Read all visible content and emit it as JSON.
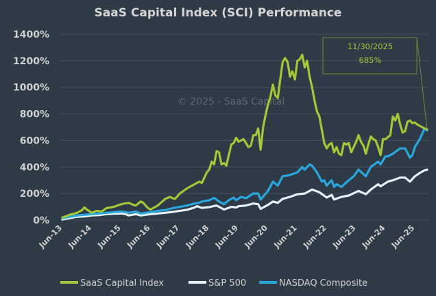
{
  "chart_data": {
    "type": "line",
    "title": "SaaS Capital Index (SCI) Performance",
    "watermark": "© 2025 - SaaS Capital",
    "xlabel": "",
    "ylabel": "",
    "ylim": [
      0,
      1400
    ],
    "y_ticks": [
      0,
      200,
      400,
      600,
      800,
      1000,
      1200,
      1400
    ],
    "y_tick_labels": [
      "0%",
      "200%",
      "400%",
      "600%",
      "800%",
      "1000%",
      "1200%",
      "1400%"
    ],
    "x_range": [
      "2013-06",
      "2025-11"
    ],
    "x_ticks": [
      "2013-06",
      "2014-06",
      "2015-06",
      "2016-06",
      "2017-06",
      "2018-06",
      "2019-06",
      "2020-06",
      "2021-06",
      "2022-06",
      "2023-06",
      "2024-06",
      "2025-06"
    ],
    "x_tick_labels": [
      "Jun-13",
      "Jun-14",
      "Jun-15",
      "Jun-16",
      "Jun-17",
      "Jun-18",
      "Jun-19",
      "Jun-20",
      "Jun-21",
      "Jun-22",
      "Jun-23",
      "Jun-24",
      "Jun-25"
    ],
    "grid": true,
    "legend_position": "bottom",
    "annotation": {
      "date": "11/30/2025",
      "value": "685%"
    },
    "series": [
      {
        "name": "SaaS Capital Index",
        "color": "#a4c639",
        "points": [
          [
            "2013-06",
            20
          ],
          [
            "2013-09",
            40
          ],
          [
            "2013-12",
            55
          ],
          [
            "2014-02",
            75
          ],
          [
            "2014-03",
            95
          ],
          [
            "2014-04",
            80
          ],
          [
            "2014-06",
            55
          ],
          [
            "2014-08",
            70
          ],
          [
            "2014-10",
            65
          ],
          [
            "2014-12",
            90
          ],
          [
            "2015-03",
            100
          ],
          [
            "2015-06",
            120
          ],
          [
            "2015-09",
            130
          ],
          [
            "2015-11",
            115
          ],
          [
            "2015-12",
            110
          ],
          [
            "2016-02",
            140
          ],
          [
            "2016-03",
            130
          ],
          [
            "2016-05",
            90
          ],
          [
            "2016-06",
            80
          ],
          [
            "2016-09",
            110
          ],
          [
            "2016-12",
            160
          ],
          [
            "2017-02",
            175
          ],
          [
            "2017-03",
            165
          ],
          [
            "2017-04",
            160
          ],
          [
            "2017-06",
            200
          ],
          [
            "2017-09",
            240
          ],
          [
            "2017-12",
            270
          ],
          [
            "2018-02",
            290
          ],
          [
            "2018-03",
            280
          ],
          [
            "2018-05",
            360
          ],
          [
            "2018-06",
            380
          ],
          [
            "2018-07",
            440
          ],
          [
            "2018-08",
            420
          ],
          [
            "2018-09",
            520
          ],
          [
            "2018-10",
            510
          ],
          [
            "2018-11",
            420
          ],
          [
            "2018-12",
            430
          ],
          [
            "2019-01",
            410
          ],
          [
            "2019-03",
            570
          ],
          [
            "2019-04",
            580
          ],
          [
            "2019-05",
            620
          ],
          [
            "2019-06",
            590
          ],
          [
            "2019-08",
            610
          ],
          [
            "2019-10",
            550
          ],
          [
            "2019-11",
            560
          ],
          [
            "2019-12",
            640
          ],
          [
            "2020-01",
            640
          ],
          [
            "2020-02",
            690
          ],
          [
            "2020-03",
            530
          ],
          [
            "2020-04",
            700
          ],
          [
            "2020-05",
            790
          ],
          [
            "2020-06",
            870
          ],
          [
            "2020-07",
            930
          ],
          [
            "2020-08",
            1020
          ],
          [
            "2020-09",
            940
          ],
          [
            "2020-10",
            920
          ],
          [
            "2020-11",
            1060
          ],
          [
            "2020-12",
            1190
          ],
          [
            "2021-01",
            1220
          ],
          [
            "2021-02",
            1190
          ],
          [
            "2021-03",
            1080
          ],
          [
            "2021-04",
            1120
          ],
          [
            "2021-05",
            1060
          ],
          [
            "2021-06",
            1200
          ],
          [
            "2021-07",
            1210
          ],
          [
            "2021-08",
            1245
          ],
          [
            "2021-09",
            1150
          ],
          [
            "2021-10",
            1200
          ],
          [
            "2021-11",
            1080
          ],
          [
            "2021-12",
            1000
          ],
          [
            "2022-01",
            900
          ],
          [
            "2022-02",
            820
          ],
          [
            "2022-03",
            780
          ],
          [
            "2022-04",
            680
          ],
          [
            "2022-05",
            580
          ],
          [
            "2022-06",
            540
          ],
          [
            "2022-07",
            570
          ],
          [
            "2022-08",
            580
          ],
          [
            "2022-09",
            510
          ],
          [
            "2022-10",
            550
          ],
          [
            "2022-11",
            500
          ],
          [
            "2022-12",
            490
          ],
          [
            "2023-01",
            580
          ],
          [
            "2023-02",
            570
          ],
          [
            "2023-03",
            580
          ],
          [
            "2023-04",
            510
          ],
          [
            "2023-06",
            590
          ],
          [
            "2023-07",
            640
          ],
          [
            "2023-08",
            590
          ],
          [
            "2023-09",
            560
          ],
          [
            "2023-10",
            500
          ],
          [
            "2023-11",
            570
          ],
          [
            "2023-12",
            630
          ],
          [
            "2024-01",
            610
          ],
          [
            "2024-02",
            600
          ],
          [
            "2024-03",
            550
          ],
          [
            "2024-04",
            490
          ],
          [
            "2024-05",
            610
          ],
          [
            "2024-06",
            610
          ],
          [
            "2024-08",
            640
          ],
          [
            "2024-09",
            780
          ],
          [
            "2024-10",
            750
          ],
          [
            "2024-11",
            800
          ],
          [
            "2024-12",
            720
          ],
          [
            "2025-01",
            660
          ],
          [
            "2025-02",
            670
          ],
          [
            "2025-03",
            740
          ],
          [
            "2025-04",
            750
          ],
          [
            "2025-05",
            730
          ],
          [
            "2025-06",
            735
          ],
          [
            "2025-07",
            720
          ],
          [
            "2025-08",
            710
          ],
          [
            "2025-09",
            700
          ],
          [
            "2025-10",
            690
          ],
          [
            "2025-11",
            685
          ]
        ]
      },
      {
        "name": "S&P 500",
        "color": "#e4f3fb",
        "points": [
          [
            "2013-06",
            5
          ],
          [
            "2013-09",
            15
          ],
          [
            "2013-12",
            25
          ],
          [
            "2014-03",
            28
          ],
          [
            "2014-06",
            35
          ],
          [
            "2014-09",
            38
          ],
          [
            "2014-12",
            45
          ],
          [
            "2015-03",
            48
          ],
          [
            "2015-06",
            50
          ],
          [
            "2015-08",
            45
          ],
          [
            "2015-09",
            35
          ],
          [
            "2015-12",
            45
          ],
          [
            "2016-02",
            35
          ],
          [
            "2016-06",
            45
          ],
          [
            "2016-09",
            50
          ],
          [
            "2016-12",
            55
          ],
          [
            "2017-03",
            62
          ],
          [
            "2017-06",
            70
          ],
          [
            "2017-09",
            78
          ],
          [
            "2017-12",
            95
          ],
          [
            "2018-01",
            105
          ],
          [
            "2018-03",
            92
          ],
          [
            "2018-06",
            98
          ],
          [
            "2018-09",
            110
          ],
          [
            "2018-12",
            80
          ],
          [
            "2019-03",
            100
          ],
          [
            "2019-05",
            95
          ],
          [
            "2019-06",
            105
          ],
          [
            "2019-09",
            110
          ],
          [
            "2019-12",
            125
          ],
          [
            "2020-02",
            120
          ],
          [
            "2020-03",
            85
          ],
          [
            "2020-06",
            115
          ],
          [
            "2020-08",
            140
          ],
          [
            "2020-10",
            130
          ],
          [
            "2020-12",
            160
          ],
          [
            "2021-03",
            175
          ],
          [
            "2021-06",
            195
          ],
          [
            "2021-09",
            200
          ],
          [
            "2021-12",
            230
          ],
          [
            "2022-03",
            210
          ],
          [
            "2022-06",
            170
          ],
          [
            "2022-08",
            190
          ],
          [
            "2022-09",
            155
          ],
          [
            "2022-12",
            175
          ],
          [
            "2023-03",
            185
          ],
          [
            "2023-07",
            220
          ],
          [
            "2023-10",
            195
          ],
          [
            "2023-12",
            230
          ],
          [
            "2024-03",
            270
          ],
          [
            "2024-04",
            255
          ],
          [
            "2024-07",
            290
          ],
          [
            "2024-09",
            300
          ],
          [
            "2024-12",
            320
          ],
          [
            "2025-02",
            320
          ],
          [
            "2025-04",
            290
          ],
          [
            "2025-06",
            330
          ],
          [
            "2025-08",
            355
          ],
          [
            "2025-10",
            375
          ],
          [
            "2025-11",
            380
          ]
        ]
      },
      {
        "name": "NASDAQ Composite",
        "color": "#29a8e0",
        "points": [
          [
            "2013-06",
            15
          ],
          [
            "2013-09",
            25
          ],
          [
            "2013-12",
            35
          ],
          [
            "2014-03",
            40
          ],
          [
            "2014-06",
            45
          ],
          [
            "2014-09",
            50
          ],
          [
            "2014-12",
            55
          ],
          [
            "2015-03",
            60
          ],
          [
            "2015-06",
            65
          ],
          [
            "2015-08",
            60
          ],
          [
            "2015-09",
            55
          ],
          [
            "2015-12",
            65
          ],
          [
            "2016-02",
            50
          ],
          [
            "2016-06",
            60
          ],
          [
            "2016-09",
            70
          ],
          [
            "2016-12",
            75
          ],
          [
            "2017-03",
            90
          ],
          [
            "2017-06",
            100
          ],
          [
            "2017-09",
            110
          ],
          [
            "2017-12",
            125
          ],
          [
            "2018-02",
            130
          ],
          [
            "2018-03",
            140
          ],
          [
            "2018-06",
            150
          ],
          [
            "2018-08",
            168
          ],
          [
            "2018-10",
            140
          ],
          [
            "2018-12",
            120
          ],
          [
            "2019-02",
            150
          ],
          [
            "2019-04",
            170
          ],
          [
            "2019-05",
            150
          ],
          [
            "2019-07",
            175
          ],
          [
            "2019-09",
            165
          ],
          [
            "2019-12",
            200
          ],
          [
            "2020-02",
            200
          ],
          [
            "2020-03",
            155
          ],
          [
            "2020-06",
            220
          ],
          [
            "2020-08",
            290
          ],
          [
            "2020-10",
            260
          ],
          [
            "2020-12",
            330
          ],
          [
            "2021-03",
            340
          ],
          [
            "2021-06",
            360
          ],
          [
            "2021-08",
            400
          ],
          [
            "2021-09",
            380
          ],
          [
            "2021-11",
            420
          ],
          [
            "2021-12",
            410
          ],
          [
            "2022-02",
            360
          ],
          [
            "2022-04",
            290
          ],
          [
            "2022-05",
            300
          ],
          [
            "2022-06",
            260
          ],
          [
            "2022-08",
            300
          ],
          [
            "2022-09",
            250
          ],
          [
            "2022-10",
            270
          ],
          [
            "2022-12",
            250
          ],
          [
            "2023-03",
            300
          ],
          [
            "2023-05",
            330
          ],
          [
            "2023-07",
            380
          ],
          [
            "2023-10",
            330
          ],
          [
            "2023-12",
            400
          ],
          [
            "2024-03",
            440
          ],
          [
            "2024-04",
            420
          ],
          [
            "2024-06",
            480
          ],
          [
            "2024-07",
            480
          ],
          [
            "2024-09",
            500
          ],
          [
            "2024-12",
            540
          ],
          [
            "2025-02",
            540
          ],
          [
            "2025-04",
            470
          ],
          [
            "2025-05",
            490
          ],
          [
            "2025-06",
            550
          ],
          [
            "2025-08",
            610
          ],
          [
            "2025-10",
            690
          ],
          [
            "2025-11",
            675
          ]
        ]
      }
    ]
  }
}
